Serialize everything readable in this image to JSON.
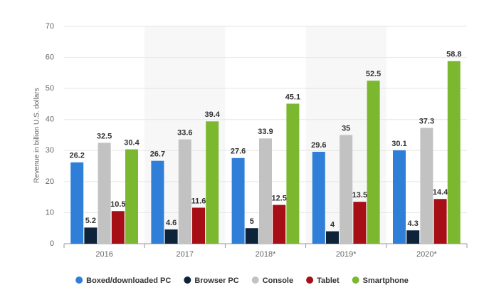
{
  "chart_data": {
    "type": "bar",
    "y_label": "Revenue in billion U.S. dollars",
    "categories": [
      "2016",
      "2017",
      "2018*",
      "2019*",
      "2020*"
    ],
    "series": [
      {
        "name": "Boxed/downloaded PC",
        "color": "#2f7ed8",
        "values": [
          26.2,
          26.7,
          27.6,
          29.6,
          30.1
        ]
      },
      {
        "name": "Browser PC",
        "color": "#0d233a",
        "values": [
          5.2,
          4.6,
          5,
          4,
          4.3
        ]
      },
      {
        "name": "Console",
        "color": "#c2c2c2",
        "values": [
          32.5,
          33.6,
          33.9,
          35,
          37.3
        ]
      },
      {
        "name": "Tablet",
        "color": "#a50f15",
        "values": [
          10.5,
          11.6,
          12.5,
          13.5,
          14.4
        ]
      },
      {
        "name": "Smartphone",
        "color": "#7cb82f",
        "values": [
          30.4,
          39.4,
          45.1,
          52.5,
          58.8
        ]
      }
    ],
    "ylim": [
      0,
      70
    ],
    "yticks": [
      0,
      10,
      20,
      30,
      40,
      50,
      60,
      70
    ],
    "grid": true
  }
}
